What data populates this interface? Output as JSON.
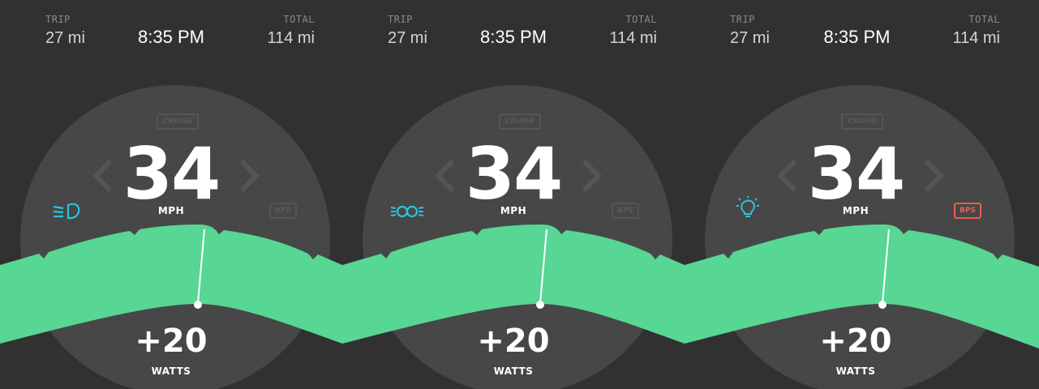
{
  "panels": [
    {
      "trip_label": "TRIP",
      "trip_value": "27 mi",
      "clock": "8:35 PM",
      "total_label": "TOTAL",
      "total_value": "114 mi",
      "cruise_label": "CRUISE",
      "speed": "34",
      "speed_unit": "MPH",
      "bps_label": "BPS",
      "bps_active": false,
      "lamp_icon": "low-beam-headlight-icon",
      "watts": "+20",
      "watts_unit": "WATTS"
    },
    {
      "trip_label": "TRIP",
      "trip_value": "27 mi",
      "clock": "8:35 PM",
      "total_label": "TOTAL",
      "total_value": "114 mi",
      "cruise_label": "CRUISE",
      "speed": "34",
      "speed_unit": "MPH",
      "bps_label": "BPS",
      "bps_active": false,
      "lamp_icon": "parking-lights-icon",
      "watts": "+20",
      "watts_unit": "WATTS"
    },
    {
      "trip_label": "TRIP",
      "trip_value": "27 mi",
      "clock": "8:35 PM",
      "total_label": "TOTAL",
      "total_value": "114 mi",
      "cruise_label": "CRUISE",
      "speed": "34",
      "speed_unit": "MPH",
      "bps_label": "BPS",
      "bps_active": true,
      "lamp_icon": "light-bulb-icon",
      "watts": "+20",
      "watts_unit": "WATTS"
    }
  ],
  "colors": {
    "background": "#313131",
    "dial": "#474747",
    "power_band": "#57d694",
    "icon_accent": "#2bc4e0",
    "bps_active": "#e8604c"
  }
}
